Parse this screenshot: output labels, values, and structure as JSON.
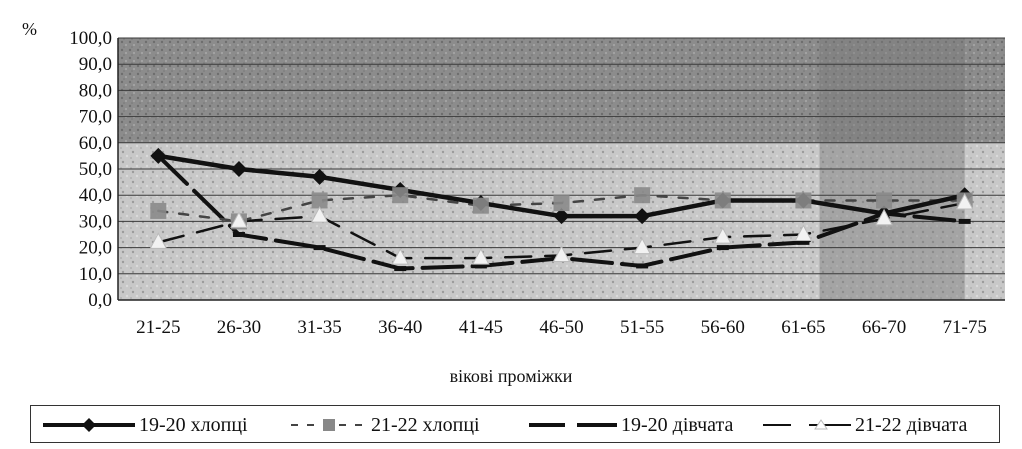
{
  "chart_data": {
    "type": "line",
    "ylabel": "%",
    "xlabel": "вікові проміжки",
    "ylim": [
      0,
      100
    ],
    "yticks": [
      "0,0",
      "10,0",
      "20,0",
      "30,0",
      "40,0",
      "50,0",
      "60,0",
      "70,0",
      "80,0",
      "90,0",
      "100,0"
    ],
    "categories": [
      "21-25",
      "26-30",
      "31-35",
      "36-40",
      "41-45",
      "46-50",
      "51-55",
      "56-60",
      "61-65",
      "66-70",
      "71-75"
    ],
    "grid": true,
    "legend_position": "bottom",
    "series": [
      {
        "name": "19-20 хлопці",
        "style": "solid-thick",
        "marker": "diamond",
        "values": [
          55,
          50,
          47,
          42,
          37,
          32,
          32,
          38,
          38,
          33,
          40
        ]
      },
      {
        "name": "21-22 хлопці",
        "style": "dashed",
        "marker": "square",
        "values": [
          34,
          30,
          38,
          40,
          36,
          37,
          40,
          38,
          38,
          38,
          38
        ]
      },
      {
        "name": "19-20 дівчата",
        "style": "solid-thick-dash",
        "marker": "dash",
        "values": [
          55,
          25,
          20,
          12,
          13,
          16,
          13,
          20,
          22,
          33,
          30
        ]
      },
      {
        "name": "21-22 дівчата",
        "style": "long-dash",
        "marker": "triangle",
        "values": [
          22,
          30,
          32,
          16,
          16,
          17,
          20,
          24,
          25,
          31,
          37
        ]
      }
    ]
  }
}
